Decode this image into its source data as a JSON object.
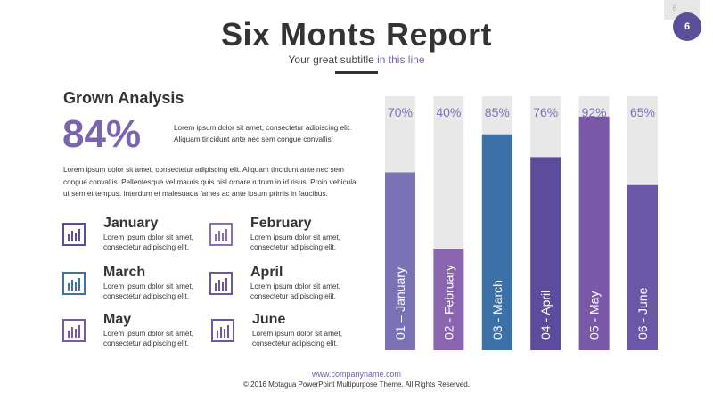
{
  "header": {
    "page_number_small": "6",
    "page_number_badge": "6",
    "title": "Six Monts Report",
    "subtitle_main": "Your great subtitle ",
    "subtitle_highlight": "in this line"
  },
  "left": {
    "section_title": "Grown Analysis",
    "big_percent": "84%",
    "percent_description": "Lorem ipsum dolor sit amet, consectetur adipiscing elit. Aliquam tincidunt ante nec sem congue convallis.",
    "body_paragraph": "Lorem ipsum dolor sit amet, consectetur adipiscing elit. Aliquam tincidunt ante nec sem congue convallis. Pellentesque vel mauris quis nisl ornare rutrum in id risus. Proin vehicula ut sem et tempus. Interdum et malesuada fames ac ante ipsum primis in faucibus.",
    "months": [
      {
        "name": "January",
        "desc": "Lorem ipsum dolor sit amet, consectetur adipiscing elit.",
        "icon": "bar-chart-icon",
        "color": "#5b4f9b"
      },
      {
        "name": "February",
        "desc": "Lorem ipsum dolor sit amet, consectetur adipiscing elit.",
        "icon": "bar-chart-icon",
        "color": "#8a6fb5"
      },
      {
        "name": "March",
        "desc": "Lorem ipsum dolor sit amet, consectetur adipiscing elit.",
        "icon": "bar-chart-icon",
        "color": "#3e72a8"
      },
      {
        "name": "April",
        "desc": "Lorem ipsum dolor sit amet, consectetur adipiscing elit.",
        "icon": "bar-chart-icon",
        "color": "#6a57a8"
      },
      {
        "name": "May",
        "desc": "Lorem ipsum dolor sit amet, consectetur adipiscing elit.",
        "icon": "bar-chart-icon",
        "color": "#7a5aa8"
      },
      {
        "name": "June",
        "desc": "Lorem ipsum dolor sit amet, consectetur adipiscing elit.",
        "icon": "bar-chart-icon",
        "color": "#6a57a8"
      }
    ]
  },
  "chart_data": {
    "type": "bar",
    "orientation": "vertical",
    "categories": [
      "01 – January",
      "02 - February",
      "03 - March",
      "04 - April",
      "05 - May",
      "06 - June"
    ],
    "values": [
      70,
      40,
      85,
      76,
      92,
      65
    ],
    "value_labels": [
      "70%",
      "40%",
      "85%",
      "76%",
      "92%",
      "65%"
    ],
    "ylim": [
      0,
      100
    ],
    "colors": [
      "#7b72b6",
      "#8a66b0",
      "#3c70a9",
      "#5d4b9c",
      "#7a58a8",
      "#6a57a8"
    ],
    "track_color": "#e8e8e8",
    "label_color": "#7a74b8",
    "grid": false,
    "title": "",
    "xlabel": "",
    "ylabel": ""
  },
  "footer": {
    "url": "www.companyname.com",
    "copyright": "© 2016 Motagua PowerPoint Multipurpose Theme. All Rights Reserved."
  }
}
